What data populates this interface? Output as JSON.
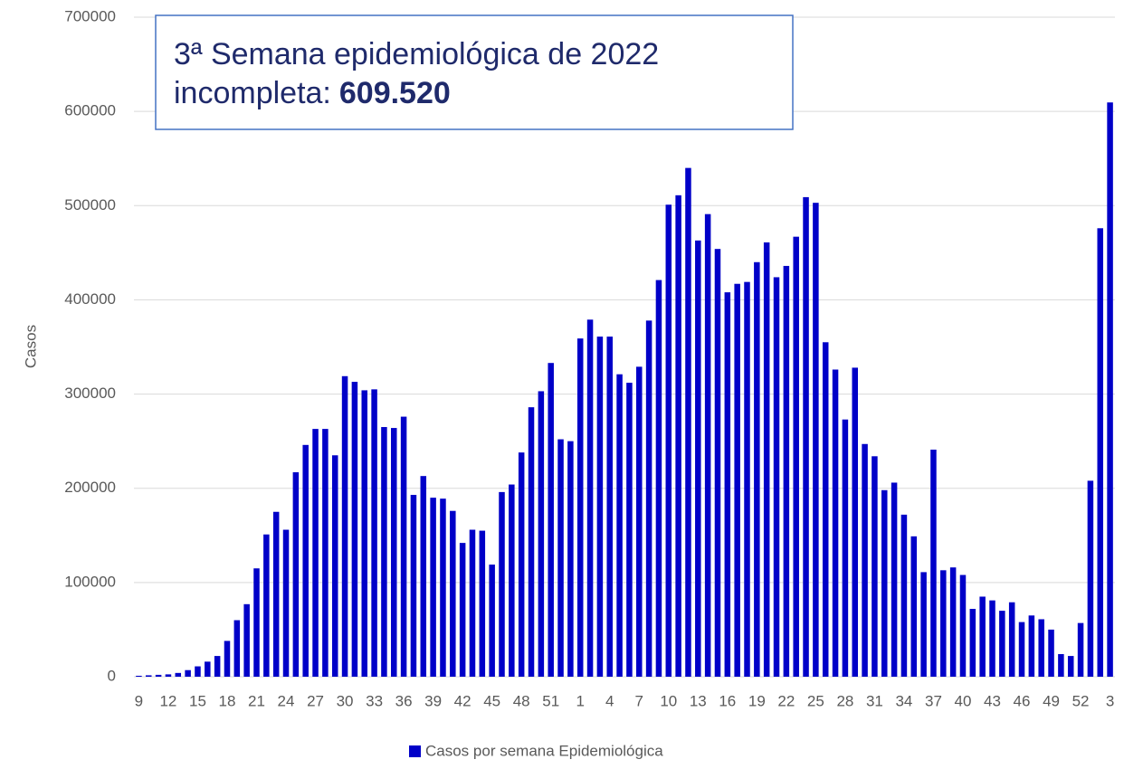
{
  "chart_data": {
    "type": "bar",
    "ylabel": "Casos",
    "annotation": {
      "line1": "3ª Semana epidemiológica de 2022",
      "line2": "incompleta:",
      "highlight": "609.520"
    },
    "series": [
      {
        "name": "Casos por semana Epidemiológica",
        "color": "#0000c8",
        "values": [
          1000,
          1500,
          2000,
          2500,
          4000,
          7000,
          11000,
          16000,
          22000,
          38000,
          60000,
          77000,
          115000,
          151000,
          175000,
          156000,
          217000,
          246000,
          263000,
          263000,
          235000,
          319000,
          313000,
          304000,
          305000,
          265000,
          264000,
          276000,
          193000,
          213000,
          190000,
          189000,
          176000,
          142000,
          156000,
          155000,
          119000,
          196000,
          204000,
          238000,
          286000,
          303000,
          333000,
          252000,
          250000,
          359000,
          379000,
          361000,
          361000,
          321000,
          312000,
          329000,
          378000,
          421000,
          501000,
          511000,
          540000,
          463000,
          491000,
          454000,
          408000,
          417000,
          419000,
          440000,
          461000,
          424000,
          436000,
          467000,
          509000,
          503000,
          355000,
          326000,
          273000,
          328000,
          247000,
          234000,
          198000,
          206000,
          172000,
          149000,
          111000,
          241000,
          113000,
          116000,
          108000,
          72000,
          85000,
          81000,
          70000,
          79000,
          58000,
          65000,
          61000,
          50000,
          24000,
          22000,
          57000,
          208000,
          476000,
          609520
        ]
      }
    ],
    "categories": [
      "9",
      null,
      null,
      "12",
      null,
      null,
      "15",
      null,
      null,
      "18",
      null,
      null,
      "21",
      null,
      null,
      "24",
      null,
      null,
      "27",
      null,
      null,
      "30",
      null,
      null,
      "33",
      null,
      null,
      "36",
      null,
      null,
      "39",
      null,
      null,
      "42",
      null,
      null,
      "45",
      null,
      null,
      "48",
      null,
      null,
      "51",
      null,
      null,
      "1",
      null,
      null,
      "4",
      null,
      null,
      "7",
      null,
      null,
      "10",
      null,
      null,
      "13",
      null,
      null,
      "16",
      null,
      null,
      "19",
      null,
      null,
      "22",
      null,
      null,
      "25",
      null,
      null,
      "28",
      null,
      null,
      "31",
      null,
      null,
      "34",
      null,
      null,
      "37",
      null,
      null,
      "40",
      null,
      null,
      "43",
      null,
      null,
      "46",
      null,
      null,
      "49",
      null,
      null,
      "52",
      null,
      null,
      "3"
    ],
    "ylim": [
      0,
      700000
    ],
    "yticks": [
      0,
      100000,
      200000,
      300000,
      400000,
      500000,
      600000,
      700000
    ],
    "grid": true
  }
}
